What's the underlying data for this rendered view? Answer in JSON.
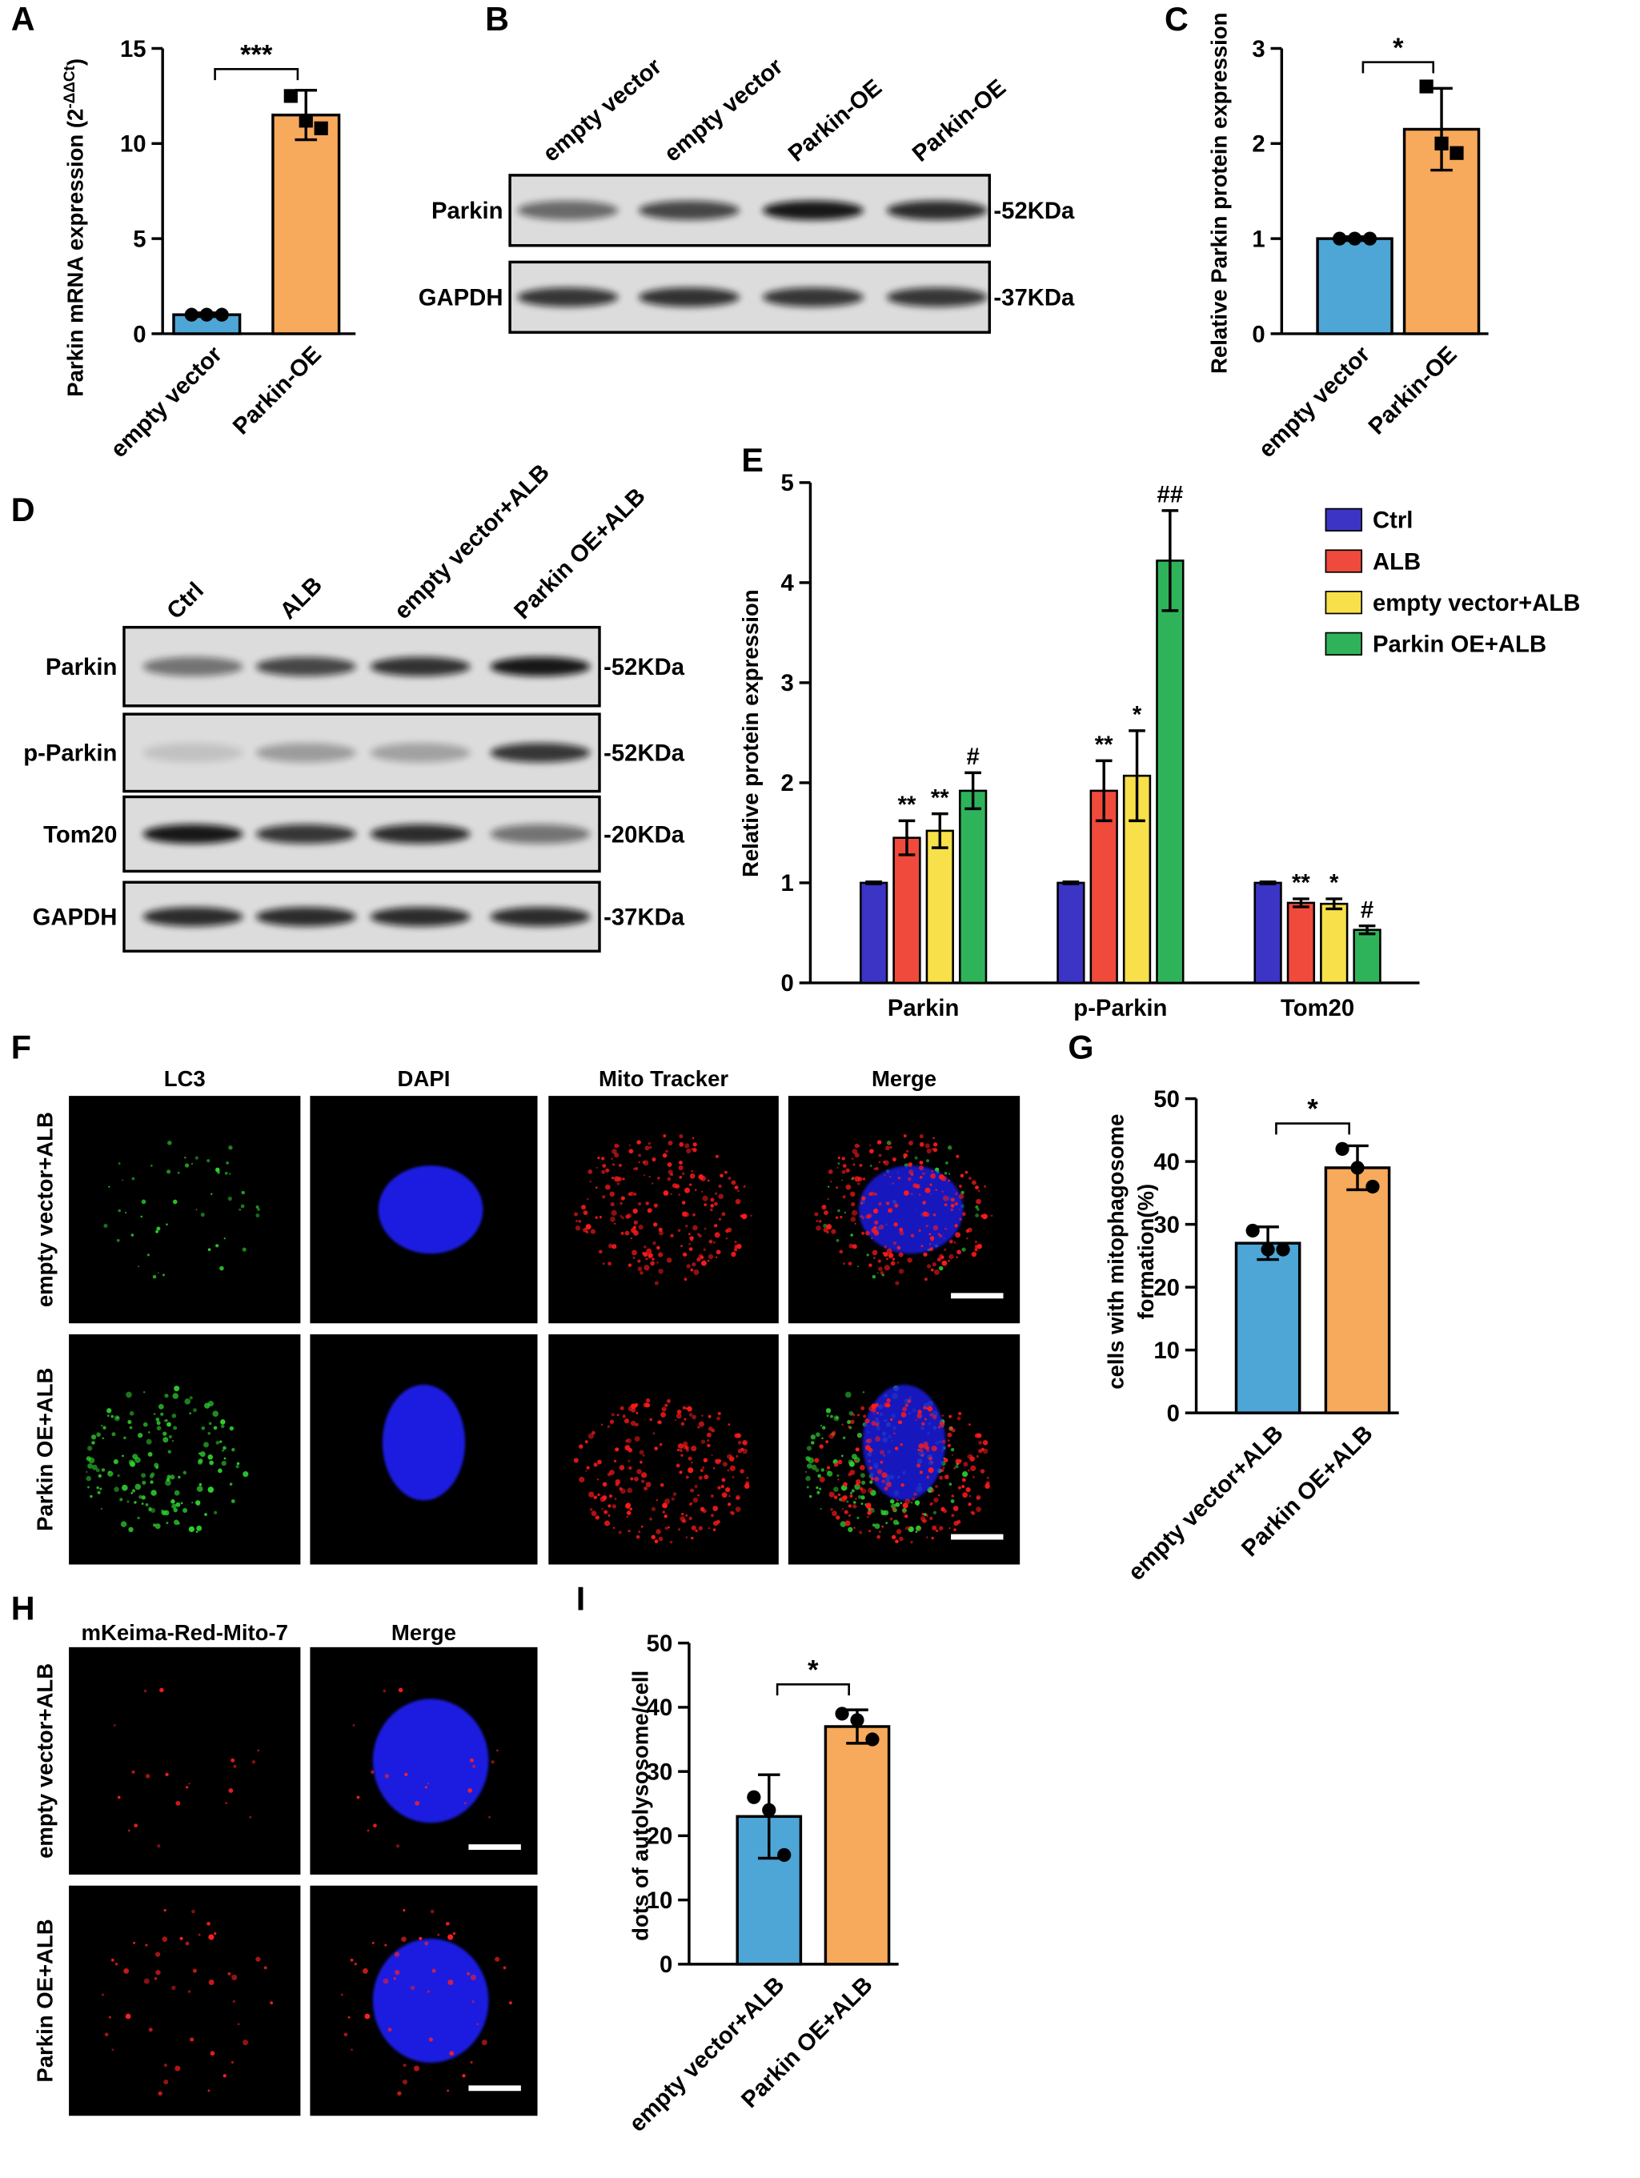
{
  "chart_data": [
    {
      "type": "bar",
      "label": "A",
      "ylabel": "Parkin mRNA expression (2",
      "ylabel_sup": "-ΔΔCt",
      "ylabel_end": ")",
      "categories": [
        "empty vector",
        "Parkin-OE"
      ],
      "values": [
        1,
        11.5
      ],
      "errors": [
        0.1,
        1.3
      ],
      "colors": [
        "#4ea6d6",
        "#f7a95c"
      ],
      "points": [
        [
          1,
          1,
          1
        ],
        [
          12.5,
          11.2,
          10.8
        ]
      ],
      "ylim": [
        0,
        15
      ],
      "yticks": [
        0,
        5,
        10,
        15
      ],
      "significance": "***"
    },
    {
      "type": "bar",
      "label": "C",
      "ylabel": "Relative  Parkin protein expression",
      "categories": [
        "empty vector",
        "Parkin-OE"
      ],
      "values": [
        1,
        2.15
      ],
      "errors": [
        0.02,
        0.43
      ],
      "colors": [
        "#4ea6d6",
        "#f7a95c"
      ],
      "points": [
        [
          1,
          1,
          1
        ],
        [
          2.6,
          2.0,
          1.9
        ]
      ],
      "ylim": [
        0,
        3
      ],
      "yticks": [
        0,
        1,
        2,
        3
      ],
      "significance": "*"
    },
    {
      "type": "grouped_bar",
      "label": "E",
      "ylabel": "Relative  protein expression",
      "categories": [
        "Parkin",
        "p-Parkin",
        "Tom20"
      ],
      "ylim": [
        0,
        5
      ],
      "yticks": [
        0,
        1,
        2,
        3,
        4,
        5
      ],
      "series": [
        {
          "name": "Ctrl",
          "color": "#3b34c4",
          "values": [
            1,
            1,
            1
          ],
          "errors": [
            0.01,
            0.01,
            0.01
          ],
          "annotations": [
            null,
            null,
            null
          ]
        },
        {
          "name": "ALB",
          "color": "#f04a3c",
          "values": [
            1.45,
            1.92,
            0.8
          ],
          "errors": [
            0.17,
            0.3,
            0.04
          ],
          "annotations": [
            "**",
            "**",
            "**"
          ]
        },
        {
          "name": "empty vector+ALB",
          "color": "#f7e04a",
          "values": [
            1.52,
            2.07,
            0.79
          ],
          "errors": [
            0.17,
            0.45,
            0.05
          ],
          "annotations": [
            "**",
            "*",
            "*"
          ]
        },
        {
          "name": "Parkin OE+ALB",
          "color": "#2fb35a",
          "values": [
            1.92,
            4.22,
            0.53
          ],
          "errors": [
            0.18,
            0.5,
            0.04
          ],
          "annotations": [
            "#",
            "##",
            "#"
          ]
        }
      ]
    },
    {
      "type": "bar",
      "label": "G",
      "ylabel": [
        "cells with mitophagosome",
        "formation(%)"
      ],
      "categories": [
        "empty vector+ALB",
        "Parkin OE+ALB"
      ],
      "values": [
        27,
        39
      ],
      "errors": [
        2.6,
        3.5
      ],
      "colors": [
        "#4ea6d6",
        "#f7a95c"
      ],
      "points": [
        [
          29,
          26,
          26
        ],
        [
          42,
          39,
          36
        ]
      ],
      "ylim": [
        0,
        50
      ],
      "yticks": [
        0,
        10,
        20,
        30,
        40,
        50
      ],
      "significance": "*"
    },
    {
      "type": "bar",
      "label": "I",
      "ylabel": "dots of autolysosome/cell",
      "categories": [
        "empty vector+ALB",
        "Parkin OE+ALB"
      ],
      "values": [
        23,
        37
      ],
      "errors": [
        6.5,
        2.6
      ],
      "colors": [
        "#4ea6d6",
        "#f7a95c"
      ],
      "points": [
        [
          26,
          24,
          17
        ],
        [
          39,
          38,
          35
        ]
      ],
      "ylim": [
        0,
        50
      ],
      "yticks": [
        0,
        10,
        20,
        30,
        40,
        50
      ],
      "significance": "*"
    }
  ],
  "blots": [
    {
      "label": "B",
      "lanes": [
        "empty vector",
        "empty vector",
        "Parkin-OE",
        "Parkin-OE"
      ],
      "rows": [
        {
          "name": "Parkin",
          "size": "-52KDa"
        },
        {
          "name": "GAPDH",
          "size": "-37KDa"
        }
      ]
    },
    {
      "label": "D",
      "lanes": [
        "Ctrl",
        "ALB",
        "empty vector+ALB",
        "Parkin OE+ALB"
      ],
      "rows": [
        {
          "name": "Parkin",
          "size": "-52KDa"
        },
        {
          "name": "p-Parkin",
          "size": "-52KDa"
        },
        {
          "name": "Tom20",
          "size": "-20KDa"
        },
        {
          "name": "GAPDH",
          "size": "-37KDa"
        }
      ]
    }
  ],
  "images": [
    {
      "label": "F",
      "columns": [
        "LC3",
        "DAPI",
        "Mito Tracker",
        "Merge"
      ],
      "rows": [
        "empty vector+ALB",
        "Parkin OE+ALB"
      ]
    },
    {
      "label": "H",
      "columns": [
        "mKeima-Red-Mito-7",
        "Merge"
      ],
      "rows": [
        "empty vector+ALB",
        "Parkin OE+ALB"
      ]
    }
  ]
}
